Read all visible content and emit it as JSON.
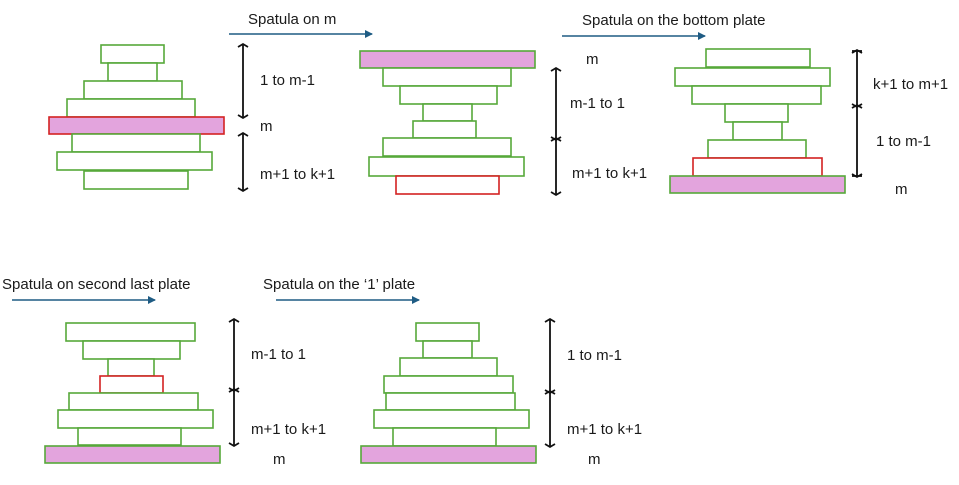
{
  "colors": {
    "plate_outline": "#56a83a",
    "highlight_outline": "#d42222",
    "spatula_plate_fill": "#e3a4dd",
    "arrow": "#1f5c84"
  },
  "panels": [
    {
      "step_label": "",
      "group_labels": [
        "1 to m-1",
        "m",
        "m+1 to k+1"
      ]
    },
    {
      "step_label": "Spatula on m",
      "group_labels": [
        "m",
        "m-1 to 1",
        "m+1 to k+1"
      ]
    },
    {
      "step_label": "Spatula on the bottom plate",
      "group_labels": [
        "k+1 to m+1",
        "1 to m-1",
        "m"
      ]
    },
    {
      "step_label": "Spatula on second last plate",
      "group_labels": [
        "m-1 to 1",
        "m+1 to k+1",
        "m"
      ]
    },
    {
      "step_label": "Spatula on the ‘1’ plate",
      "group_labels": [
        "1 to m-1",
        "m+1 to k+1",
        "m"
      ]
    }
  ]
}
